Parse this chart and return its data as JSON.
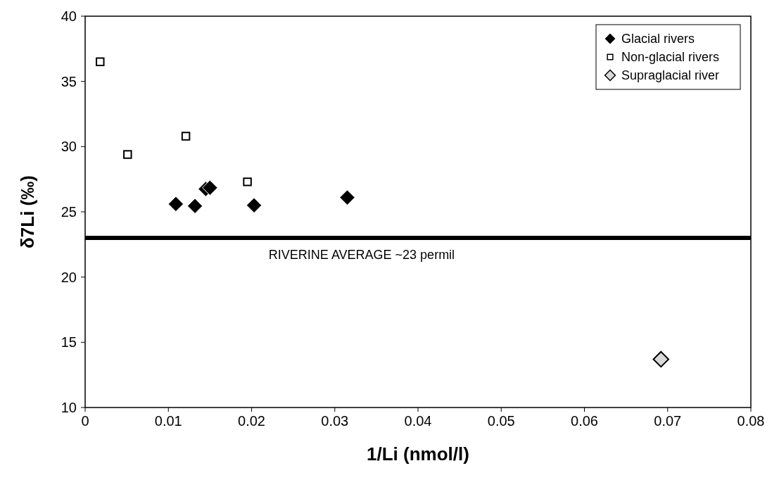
{
  "chart_data": {
    "type": "scatter",
    "xlabel": "1/Li (nmol/l)",
    "ylabel": "δ7Li (‰)",
    "xlim": [
      0,
      0.08
    ],
    "xticks": [
      0,
      0.01,
      0.02,
      0.03,
      0.04,
      0.05,
      0.06,
      0.07,
      0.08
    ],
    "ylim": [
      10,
      40
    ],
    "yticks": [
      10,
      15,
      20,
      25,
      30,
      35,
      40
    ],
    "grid": false,
    "legend": "top right",
    "series": [
      {
        "name": "Glacial rivers",
        "color": "#000000",
        "marker": "diamond",
        "x": [
          0.0109,
          0.0132,
          0.0145,
          0.015,
          0.0203,
          0.0315
        ],
        "values": [
          25.6,
          25.45,
          26.75,
          26.85,
          25.5,
          26.1
        ]
      },
      {
        "name": "Non-glacial rivers",
        "color": "#ffffff",
        "marker": "square",
        "x": [
          0.0018,
          0.0051,
          0.0121,
          0.0195
        ],
        "values": [
          36.5,
          29.4,
          30.8,
          27.3
        ]
      },
      {
        "name": "Supraglacial river",
        "color": "#d9d9d9",
        "marker": "diamond",
        "x": [
          0.0692
        ],
        "values": [
          13.7
        ]
      }
    ],
    "ref_lines": [
      {
        "axis": "y",
        "value": 23,
        "label": "RIVERINE AVERAGE ~23 permil",
        "color": "#000000"
      }
    ]
  }
}
